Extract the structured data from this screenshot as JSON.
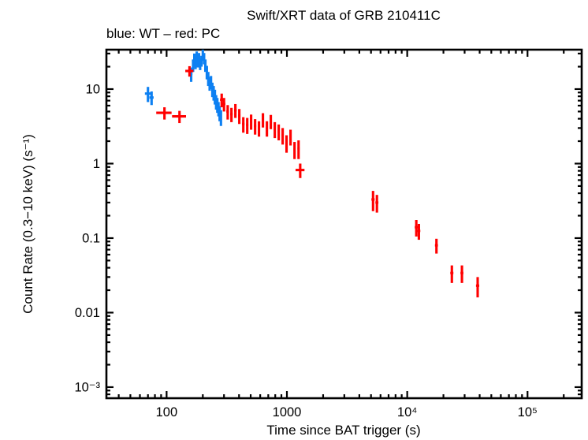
{
  "title": "Swift/XRT data of GRB 210411C",
  "subtitle": "blue: WT – red: PC",
  "colors": {
    "wt_blue": "#0d80f2",
    "pc_red": "#ff0000",
    "axis": "#000000",
    "background": "#ffffff"
  },
  "chart_data": {
    "type": "scatter",
    "title": "Swift/XRT data of GRB 210411C",
    "subtitle": "blue: WT – red: PC",
    "xlabel": "Time since BAT trigger (s)",
    "ylabel": "Count Rate (0.3−10 keV) (s⁻¹)",
    "xscale": "log",
    "yscale": "log",
    "xlim": [
      31.6,
      282000
    ],
    "ylim": [
      0.00071,
      33.8
    ],
    "grid": false,
    "legend_position": "none",
    "marker_style": "cross-with-error-bars",
    "x_ticks": [
      {
        "value": 100,
        "label": "100"
      },
      {
        "value": 1000,
        "label": "1000"
      },
      {
        "value": 10000,
        "label": "10⁴"
      },
      {
        "value": 100000,
        "label": "10⁵"
      }
    ],
    "y_ticks": [
      {
        "value": 10,
        "label": "10"
      },
      {
        "value": 1,
        "label": "1"
      },
      {
        "value": 0.1,
        "label": "0.1"
      },
      {
        "value": 0.01,
        "label": "0.01"
      },
      {
        "value": 0.001,
        "label": "10⁻³"
      }
    ],
    "series": [
      {
        "name": "WT",
        "color_key": "wt_blue",
        "points_format": [
          "time_s",
          "time_err_s",
          "rate_cps",
          "rate_err_cps"
        ],
        "points": [
          [
            70,
            4,
            8.7,
            2.0
          ],
          [
            75,
            3,
            7.7,
            1.6
          ],
          [
            160,
            4,
            16,
            3.5
          ],
          [
            166,
            3,
            21,
            4
          ],
          [
            170,
            3,
            25,
            5
          ],
          [
            174,
            3,
            23,
            4.5
          ],
          [
            178,
            3,
            27,
            5
          ],
          [
            182,
            3,
            24,
            4.5
          ],
          [
            186,
            3,
            26,
            4.5
          ],
          [
            190,
            3,
            22,
            4
          ],
          [
            195,
            3,
            24,
            4
          ],
          [
            200,
            3,
            29,
            5
          ],
          [
            205,
            3,
            26,
            4.5
          ],
          [
            210,
            3,
            21,
            4
          ],
          [
            216,
            3,
            17,
            3.5
          ],
          [
            222,
            3,
            14,
            3
          ],
          [
            228,
            3,
            12,
            2.5
          ],
          [
            234,
            3,
            12.5,
            2.5
          ],
          [
            240,
            3,
            10,
            2.2
          ],
          [
            246,
            3,
            9,
            2
          ],
          [
            252,
            3,
            8,
            1.8
          ],
          [
            258,
            3,
            6.8,
            1.5
          ],
          [
            264,
            3,
            6.2,
            1.4
          ],
          [
            270,
            3,
            5.5,
            1.2
          ],
          [
            276,
            3,
            4.8,
            1.1
          ],
          [
            283,
            3,
            4.2,
            1.0
          ]
        ]
      },
      {
        "name": "PC",
        "color_key": "pc_red",
        "points_format": [
          "time_s",
          "time_err_s",
          "rate_cps",
          "rate_err_cps"
        ],
        "points": [
          [
            96,
            14,
            4.8,
            0.9
          ],
          [
            128,
            17,
            4.3,
            0.8
          ],
          [
            155,
            12,
            17.5,
            2.8
          ],
          [
            287,
            9,
            7.2,
            1.5
          ],
          [
            300,
            8,
            6.3,
            1.3
          ],
          [
            322,
            8,
            5.0,
            1.1
          ],
          [
            346,
            8,
            4.6,
            1.0
          ],
          [
            373,
            9,
            5.2,
            1.1
          ],
          [
            402,
            9,
            4.4,
            1.0
          ],
          [
            434,
            10,
            3.4,
            0.8
          ],
          [
            468,
            10,
            3.3,
            0.8
          ],
          [
            504,
            11,
            3.7,
            0.85
          ],
          [
            544,
            12,
            3.2,
            0.75
          ],
          [
            586,
            12,
            3.0,
            0.7
          ],
          [
            632,
            13,
            3.9,
            0.85
          ],
          [
            682,
            14,
            3.0,
            0.7
          ],
          [
            735,
            15,
            3.7,
            0.8
          ],
          [
            793,
            16,
            2.9,
            0.7
          ],
          [
            855,
            17,
            2.7,
            0.65
          ],
          [
            922,
            18,
            2.4,
            0.6
          ],
          [
            993,
            19,
            1.9,
            0.5
          ],
          [
            1072,
            20,
            2.3,
            0.55
          ],
          [
            1157,
            22,
            1.55,
            0.4
          ],
          [
            1250,
            26,
            1.6,
            0.45
          ],
          [
            1290,
            110,
            0.82,
            0.18
          ],
          [
            5200,
            160,
            0.33,
            0.1
          ],
          [
            5600,
            160,
            0.3,
            0.08
          ],
          [
            11900,
            350,
            0.14,
            0.035
          ],
          [
            12500,
            350,
            0.125,
            0.03
          ],
          [
            17500,
            500,
            0.08,
            0.018
          ],
          [
            23500,
            700,
            0.034,
            0.009
          ],
          [
            28500,
            800,
            0.034,
            0.009
          ],
          [
            38500,
            1200,
            0.023,
            0.007
          ]
        ]
      }
    ]
  }
}
